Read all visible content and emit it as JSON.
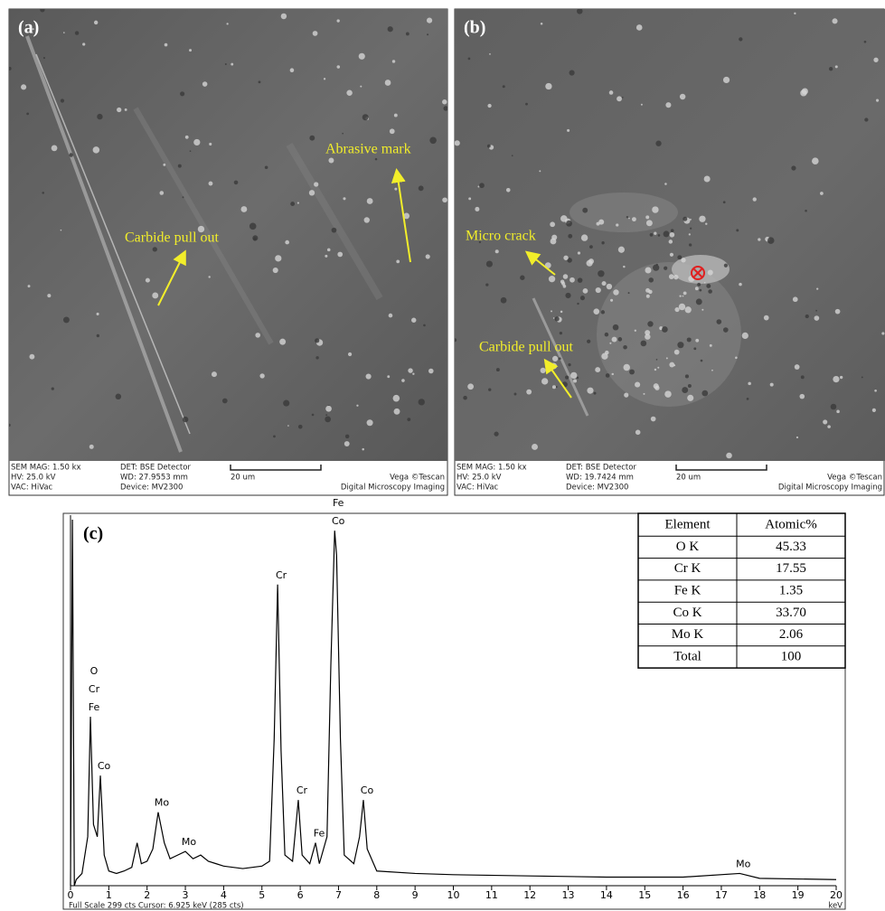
{
  "panels": [
    {
      "label": "(a)",
      "annotations": [
        "Carbide pull out",
        "Abrasive mark"
      ],
      "info": {
        "mag": "SEM MAG: 1.50 kx",
        "hv": "HV:  25.0 kV",
        "vac": "VAC: HiVac",
        "det": "DET: BSE Detector",
        "wd": "WD: 27.9553 mm",
        "device": "Device: MV2300",
        "scale": "20 um",
        "brand": "Vega ©Tescan",
        "imaging": "Digital Microscopy Imaging"
      }
    },
    {
      "label": "(b)",
      "annotations": [
        "Micro crack",
        "Carbide pull out"
      ],
      "info": {
        "mag": "SEM MAG: 1.50 kx",
        "hv": "HV:  25.0 kV",
        "vac": "VAC: HiVac",
        "det": "DET: BSE Detector",
        "wd": "WD: 19.7424 mm",
        "device": "Device: MV2300",
        "scale": "20 um",
        "brand": "Vega ©Tescan",
        "imaging": "Digital Microscopy Imaging"
      }
    }
  ],
  "chart_data": {
    "type": "line",
    "panel_label": "(c)",
    "color": "#000000",
    "x": [
      0,
      0.05,
      0.1,
      0.15,
      0.3,
      0.45,
      0.52,
      0.6,
      0.7,
      0.78,
      0.88,
      1.0,
      1.2,
      1.4,
      1.6,
      1.74,
      1.85,
      2.0,
      2.15,
      2.29,
      2.45,
      2.6,
      2.8,
      3.0,
      3.2,
      3.4,
      3.6,
      3.8,
      4.0,
      4.5,
      5.0,
      5.2,
      5.32,
      5.41,
      5.5,
      5.6,
      5.8,
      5.95,
      6.05,
      6.25,
      6.4,
      6.5,
      6.7,
      6.8,
      6.9,
      6.95,
      7.05,
      7.15,
      7.4,
      7.55,
      7.65,
      7.75,
      8.0,
      9,
      10,
      12,
      14,
      16,
      17.48,
      18,
      20
    ],
    "values": [
      0,
      299,
      0,
      5,
      10,
      40,
      138,
      50,
      40,
      90,
      25,
      12,
      10,
      12,
      15,
      35,
      18,
      20,
      30,
      60,
      35,
      22,
      25,
      28,
      22,
      25,
      20,
      18,
      16,
      14,
      16,
      20,
      120,
      246,
      110,
      25,
      20,
      70,
      25,
      18,
      35,
      18,
      40,
      180,
      290,
      270,
      120,
      25,
      18,
      40,
      70,
      30,
      12,
      10,
      9,
      8,
      7,
      7,
      10,
      6,
      5
    ],
    "xlim": [
      0,
      20
    ],
    "xticks": [
      0,
      1,
      2,
      3,
      4,
      5,
      6,
      7,
      8,
      9,
      10,
      11,
      12,
      13,
      14,
      15,
      16,
      17,
      18,
      19,
      20
    ],
    "ylim": [
      0,
      299
    ],
    "xlabel": "keV",
    "footer": "Full Scale 299 cts  Cursor: 6.925 keV (285 cts)",
    "peak_labels": [
      {
        "x": 0.52,
        "labels": [
          "O",
          "Cr",
          "Fe"
        ]
      },
      {
        "x": 0.78,
        "labels": [
          "Co"
        ]
      },
      {
        "x": 2.29,
        "labels": [
          "Mo"
        ]
      },
      {
        "x": 3.0,
        "labels": [
          "Mo"
        ]
      },
      {
        "x": 5.41,
        "labels": [
          "Cr"
        ]
      },
      {
        "x": 5.95,
        "labels": [
          "Cr"
        ]
      },
      {
        "x": 6.4,
        "labels": [
          "Fe"
        ]
      },
      {
        "x": 6.9,
        "labels": [
          "Fe",
          "Co"
        ]
      },
      {
        "x": 7.65,
        "labels": [
          "Co"
        ]
      },
      {
        "x": 17.48,
        "labels": [
          "Mo"
        ]
      }
    ]
  },
  "table": {
    "header": [
      "Element",
      "Atomic%"
    ],
    "rows": [
      [
        "O K",
        "45.33"
      ],
      [
        "Cr K",
        "17.55"
      ],
      [
        "Fe K",
        "1.35"
      ],
      [
        "Co K",
        "33.70"
      ],
      [
        "Mo K",
        "2.06"
      ],
      [
        "Total",
        "100"
      ]
    ]
  }
}
